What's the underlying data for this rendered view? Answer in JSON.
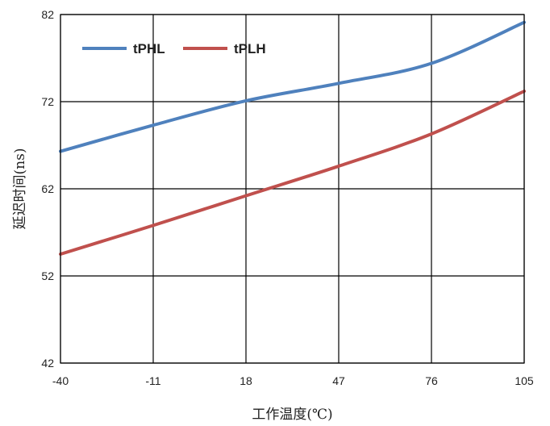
{
  "chart_data": {
    "type": "line",
    "title": "",
    "xlabel": "工作温度(℃)",
    "ylabel": "延迟时间(ns)",
    "x_ticks": [
      -40,
      -11,
      18,
      47,
      76,
      105
    ],
    "x_tick_labels": [
      "-40",
      "-11",
      "18",
      "47",
      "76",
      "105"
    ],
    "y_ticks": [
      42,
      52,
      62,
      72,
      82
    ],
    "y_tick_labels": [
      "42",
      "52",
      "62",
      "72",
      "82"
    ],
    "xlim": [
      -40,
      105
    ],
    "ylim": [
      42,
      82
    ],
    "grid": true,
    "legend_position": "top-left",
    "series": [
      {
        "name": "tPHL",
        "color": "#4F81BD",
        "x": [
          -40,
          -11,
          18,
          47,
          76,
          105
        ],
        "y": [
          66.3,
          69.3,
          72.1,
          74.1,
          76.4,
          81.1
        ]
      },
      {
        "name": "tPLH",
        "color": "#C0504D",
        "x": [
          -40,
          -11,
          18,
          47,
          76,
          105
        ],
        "y": [
          54.5,
          57.8,
          61.2,
          64.6,
          68.3,
          73.2
        ]
      }
    ]
  }
}
